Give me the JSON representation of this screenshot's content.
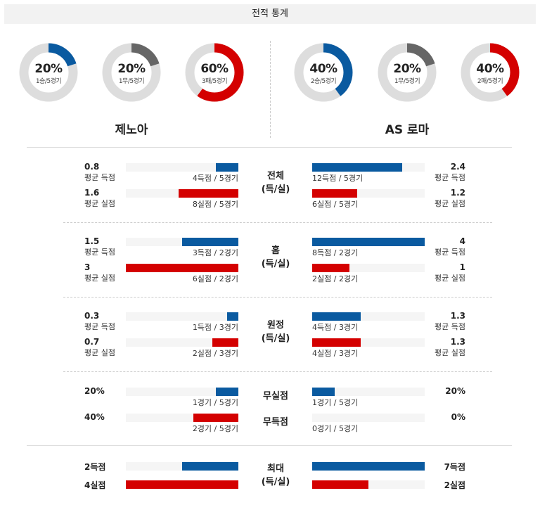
{
  "title": "전적 통계",
  "colors": {
    "blue": "#0a5aa0",
    "red": "#d40000",
    "gray": "#666666",
    "track": "#dddddd"
  },
  "home": {
    "name": "제노아",
    "donuts": [
      {
        "pct": "20%",
        "sub": "1승/5경기",
        "value": 0.2,
        "color": "#0a5aa0"
      },
      {
        "pct": "20%",
        "sub": "1무/5경기",
        "value": 0.2,
        "color": "#666666"
      },
      {
        "pct": "60%",
        "sub": "3패/5경기",
        "value": 0.6,
        "color": "#d40000"
      }
    ]
  },
  "away": {
    "name": "AS 로마",
    "donuts": [
      {
        "pct": "40%",
        "sub": "2승/5경기",
        "value": 0.4,
        "color": "#0a5aa0"
      },
      {
        "pct": "20%",
        "sub": "1무/5경기",
        "value": 0.2,
        "color": "#666666"
      },
      {
        "pct": "40%",
        "sub": "2패/5경기",
        "value": 0.4,
        "color": "#d40000"
      }
    ]
  },
  "labels": {
    "avg_scored": "평균 득점",
    "avg_conceded": "평균 실점"
  },
  "sections": [
    {
      "cat1": "전체",
      "cat2": "(득/실)",
      "home": {
        "scored": "0.8",
        "scored_frac": 0.2,
        "scored_cap": "4득점 / 5경기",
        "conceded": "1.6",
        "conceded_frac": 0.53,
        "conceded_cap": "8실점 / 5경기"
      },
      "away": {
        "scored": "2.4",
        "scored_frac": 0.8,
        "scored_cap": "12득점 / 5경기",
        "conceded": "1.2",
        "conceded_frac": 0.4,
        "conceded_cap": "6실점 / 5경기"
      }
    },
    {
      "cat1": "홈",
      "cat2": "(득/실)",
      "home": {
        "scored": "1.5",
        "scored_frac": 0.5,
        "scored_cap": "3득점 / 2경기",
        "conceded": "3",
        "conceded_frac": 1.0,
        "conceded_cap": "6실점 / 2경기"
      },
      "away": {
        "scored": "4",
        "scored_frac": 1.0,
        "scored_cap": "8득점 / 2경기",
        "conceded": "1",
        "conceded_frac": 0.33,
        "conceded_cap": "2실점 / 2경기"
      }
    },
    {
      "cat1": "원정",
      "cat2": "(득/실)",
      "home": {
        "scored": "0.3",
        "scored_frac": 0.1,
        "scored_cap": "1득점 / 3경기",
        "conceded": "0.7",
        "conceded_frac": 0.23,
        "conceded_cap": "2실점 / 3경기"
      },
      "away": {
        "scored": "1.3",
        "scored_frac": 0.43,
        "scored_cap": "4득점 / 3경기",
        "conceded": "1.3",
        "conceded_frac": 0.43,
        "conceded_cap": "4실점 / 3경기"
      }
    }
  ],
  "cleansheet": {
    "cat": "무실점",
    "home": {
      "value": "20%",
      "frac": 0.2,
      "cap": "1경기 / 5경기"
    },
    "away": {
      "value": "20%",
      "frac": 0.2,
      "cap": "1경기 / 5경기"
    }
  },
  "noscore": {
    "cat": "무득점",
    "home": {
      "value": "40%",
      "frac": 0.4,
      "cap": "2경기 / 5경기"
    },
    "away": {
      "value": "0%",
      "frac": 0.0,
      "cap": "0경기 / 5경기"
    }
  },
  "max": {
    "cat1": "최대",
    "cat2": "(득/실)",
    "home": {
      "scored": "2득점",
      "scored_frac": 0.5,
      "conceded": "4실점",
      "conceded_frac": 1.0
    },
    "away": {
      "scored": "7득점",
      "scored_frac": 1.0,
      "conceded": "2실점",
      "conceded_frac": 0.5
    }
  }
}
